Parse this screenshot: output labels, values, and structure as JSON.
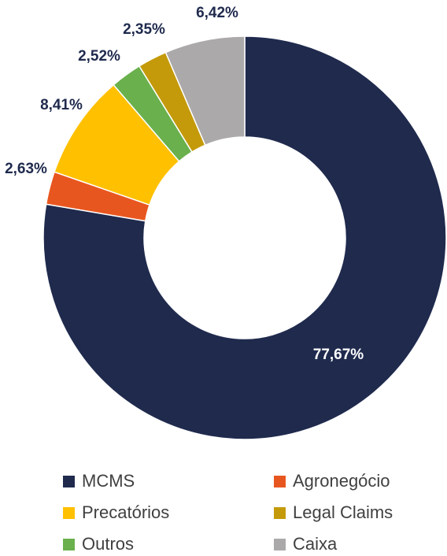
{
  "chart_data": {
    "type": "donut",
    "title": "",
    "series": [
      {
        "name": "MCMS",
        "value": 77.67,
        "label": "77,67%",
        "color": "#1F2A4D"
      },
      {
        "name": "Agronegócio",
        "value": 2.63,
        "label": "2,63%",
        "color": "#E8561F"
      },
      {
        "name": "Precatórios",
        "value": 8.41,
        "label": "8,41%",
        "color": "#FFC000"
      },
      {
        "name": "Outros",
        "value": 2.52,
        "label": "2,52%",
        "color": "#6AB04C"
      },
      {
        "name": "Legal Claims",
        "value": 2.35,
        "label": "2,35%",
        "color": "#C49A0A"
      },
      {
        "name": "Caixa",
        "value": 6.42,
        "label": "6,42%",
        "color": "#ACA9AA"
      }
    ],
    "legend_position": "bottom",
    "legend_order": [
      "MCMS",
      "Agronegócio",
      "Precatórios",
      "Legal Claims",
      "Outros",
      "Caixa"
    ]
  }
}
